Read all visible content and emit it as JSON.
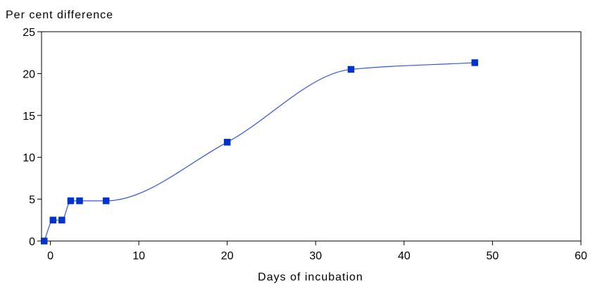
{
  "chart_data": {
    "type": "line",
    "title": "",
    "ylabel": "Per cent difference",
    "xlabel": "Days of incubation",
    "xlim": [
      -1,
      60
    ],
    "ylim": [
      0,
      25
    ],
    "xticks": [
      0,
      10,
      20,
      30,
      40,
      50,
      60
    ],
    "yticks": [
      0,
      5,
      10,
      15,
      20,
      25
    ],
    "grid": false,
    "legend": "none",
    "series": [
      {
        "smooth": true,
        "color": "#0033cc",
        "line_color": "#3355dd",
        "marker": "square",
        "x": [
          -0.7,
          0.3,
          1.3,
          2.3,
          3.3,
          6.3,
          20.0,
          34.0,
          48.0
        ],
        "y": [
          0.0,
          2.5,
          2.5,
          4.8,
          4.8,
          4.8,
          11.8,
          20.5,
          21.3
        ]
      }
    ]
  }
}
